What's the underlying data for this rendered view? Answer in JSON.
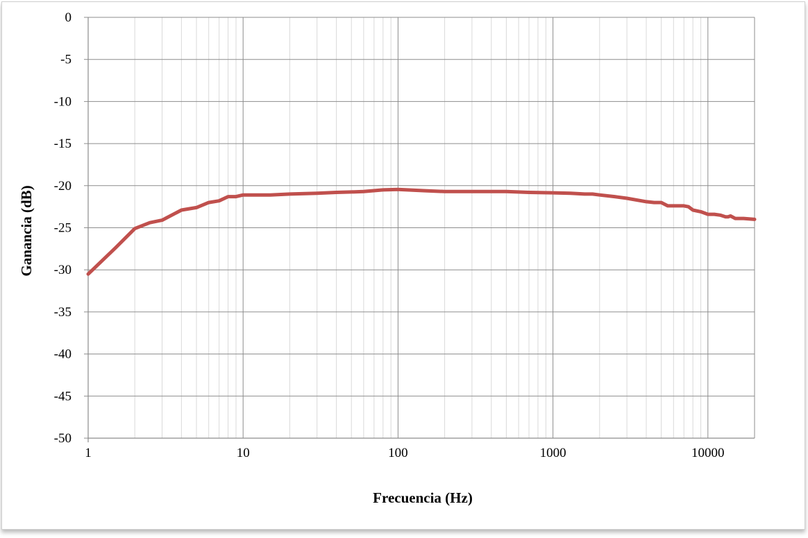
{
  "chart_data": {
    "type": "line",
    "xlabel": "Frecuencia (Hz)",
    "ylabel": "Ganancia (dB)",
    "x_scale": "log",
    "xlim": [
      1,
      20000
    ],
    "ylim": [
      -50,
      0
    ],
    "x_ticks": [
      "1",
      "10",
      "100",
      "1000",
      "10000"
    ],
    "y_ticks": [
      "0",
      "-5",
      "-10",
      "-15",
      "-20",
      "-25",
      "-30",
      "-35",
      "-40",
      "-45",
      "-50"
    ],
    "grid": true,
    "legend": "none",
    "line_color": "#c0504d",
    "series": [
      {
        "x": [
          1,
          1.5,
          2,
          2.5,
          3,
          4,
          5,
          6,
          7,
          8,
          9,
          10,
          15,
          20,
          30,
          40,
          50,
          60,
          80,
          100,
          150,
          200,
          300,
          500,
          700,
          1000,
          1300,
          1600,
          1800,
          2000,
          2500,
          3000,
          4000,
          4500,
          5000,
          5500,
          6000,
          7000,
          7500,
          8000,
          9000,
          10000,
          11000,
          12000,
          13000,
          13500,
          14000,
          15000,
          17000,
          20000
        ],
        "y": [
          -30.5,
          -27.4,
          -25.1,
          -24.4,
          -24.1,
          -22.9,
          -22.6,
          -22.0,
          -21.8,
          -21.3,
          -21.3,
          -21.1,
          -21.1,
          -21.0,
          -20.9,
          -20.8,
          -20.75,
          -20.7,
          -20.5,
          -20.45,
          -20.6,
          -20.7,
          -20.7,
          -20.7,
          -20.8,
          -20.85,
          -20.9,
          -21.0,
          -21.0,
          -21.1,
          -21.3,
          -21.5,
          -21.9,
          -22.0,
          -22.0,
          -22.4,
          -22.4,
          -22.4,
          -22.5,
          -22.9,
          -23.1,
          -23.4,
          -23.4,
          -23.5,
          -23.7,
          -23.7,
          -23.6,
          -23.9,
          -23.9,
          -24.0
        ]
      }
    ]
  }
}
